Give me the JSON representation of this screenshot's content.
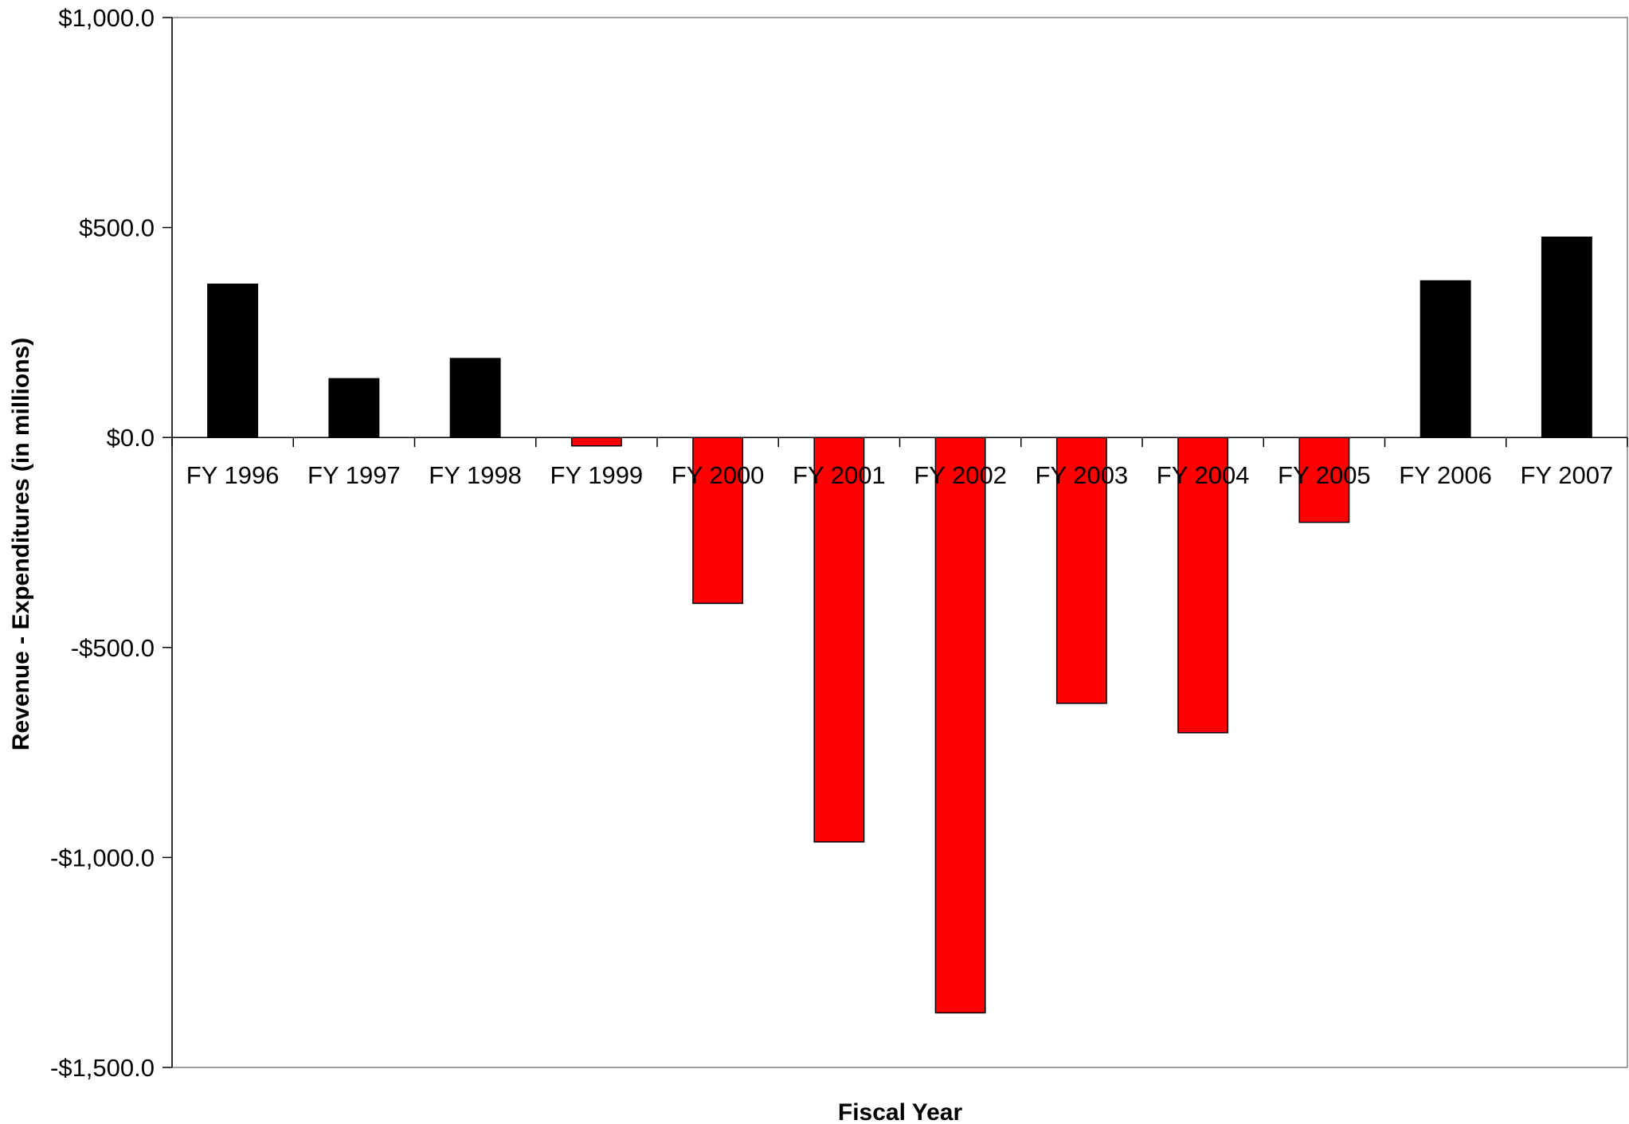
{
  "chart_data": {
    "type": "bar",
    "xlabel": "Fiscal Year",
    "ylabel": "Revenue - Expenditures (in millions)",
    "ylim": [
      -1500,
      1000
    ],
    "y_ticks": [
      1000,
      500,
      0,
      -500,
      -1000,
      -1500
    ],
    "y_tick_labels": [
      "$1,000.0",
      "$500.0",
      "$0.0",
      "-$500.0",
      "-$1,000.0",
      "-$1,500.0"
    ],
    "categories": [
      "FY 1996",
      "FY 1997",
      "FY 1998",
      "FY 1999",
      "FY 2000",
      "FY 2001",
      "FY 2002",
      "FY 2003",
      "FY 2004",
      "FY 2005",
      "FY 2006",
      "FY 2007"
    ],
    "values": [
      365,
      140,
      188,
      -20,
      -395,
      -963,
      -1370,
      -633,
      -703,
      -202,
      373,
      477
    ],
    "colors": {
      "positive": "#000000",
      "negative": "#ff0000",
      "bar_border": "#000000"
    },
    "grid": false,
    "legend": "none"
  }
}
